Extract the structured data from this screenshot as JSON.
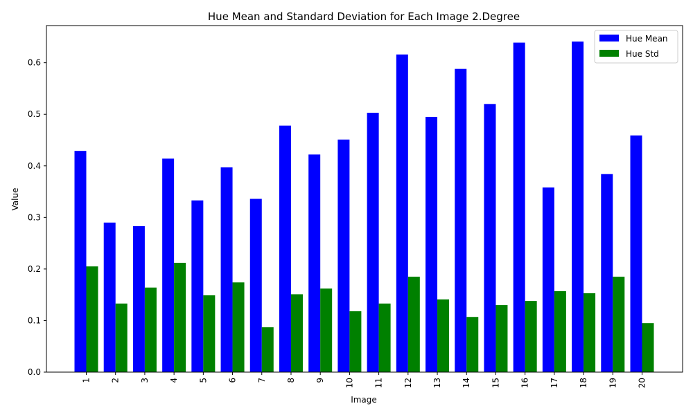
{
  "chart_data": {
    "type": "bar",
    "title": "Hue Mean and Standard Deviation for Each Image 2.Degree",
    "xlabel": "Image",
    "ylabel": "Value",
    "categories": [
      "1",
      "2",
      "3",
      "4",
      "5",
      "6",
      "7",
      "8",
      "9",
      "10",
      "11",
      "12",
      "13",
      "14",
      "15",
      "16",
      "17",
      "18",
      "19",
      "20"
    ],
    "series": [
      {
        "name": "Hue Mean",
        "color": "#0000ff",
        "values": [
          0.429,
          0.29,
          0.283,
          0.414,
          0.333,
          0.397,
          0.336,
          0.478,
          0.422,
          0.451,
          0.503,
          0.616,
          0.495,
          0.588,
          0.52,
          0.639,
          0.358,
          0.641,
          0.384,
          0.459
        ]
      },
      {
        "name": "Hue Std",
        "color": "#008000",
        "values": [
          0.205,
          0.133,
          0.164,
          0.212,
          0.149,
          0.174,
          0.087,
          0.151,
          0.162,
          0.118,
          0.133,
          0.185,
          0.141,
          0.107,
          0.13,
          0.138,
          0.157,
          0.153,
          0.185,
          0.095
        ]
      }
    ],
    "ylim": [
      0,
      0.672
    ],
    "yticks": [
      "0.0",
      "0.1",
      "0.2",
      "0.3",
      "0.4",
      "0.5",
      "0.6"
    ],
    "x_tick_rotation": "vertical",
    "grid": false,
    "legend_position": "top-right"
  }
}
